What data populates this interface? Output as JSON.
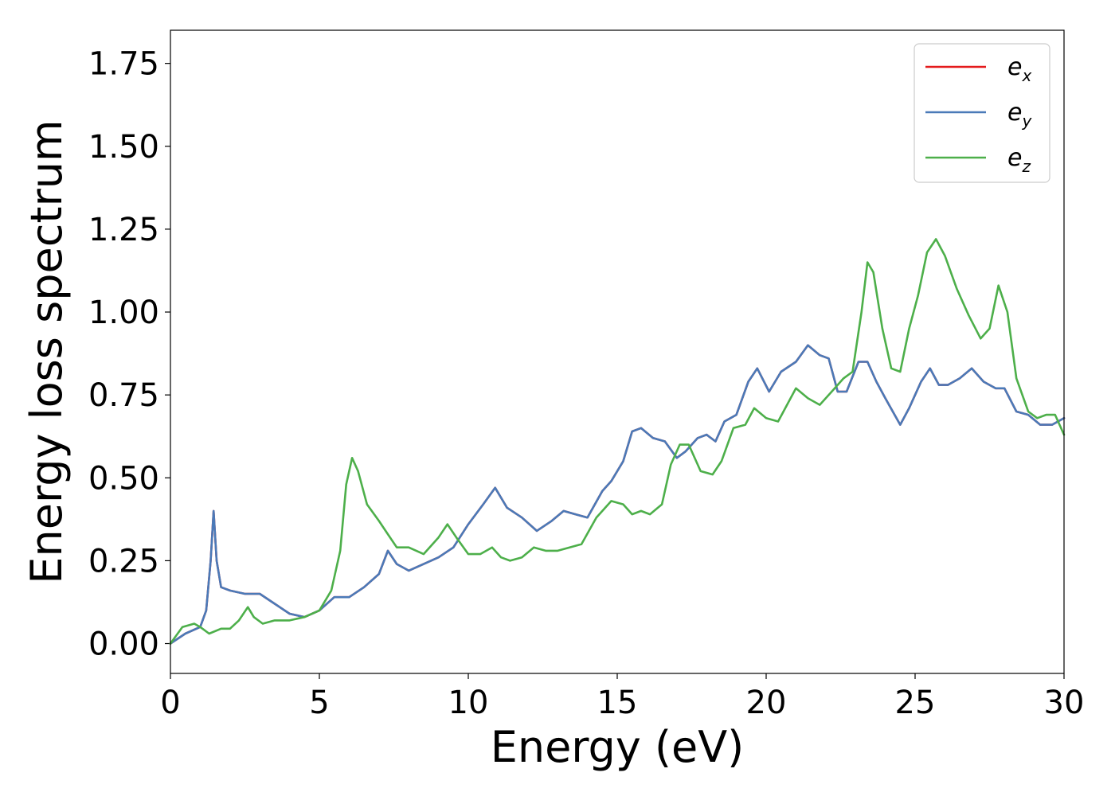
{
  "chart_data": {
    "type": "line",
    "xlabel": "Energy (eV)",
    "ylabel": "Energy loss spectrum",
    "xlim": [
      0,
      30
    ],
    "ylim": [
      -0.09,
      1.85
    ],
    "grid": false,
    "legend_position": "top-right",
    "xticks": [
      0,
      5,
      10,
      15,
      20,
      25,
      30
    ],
    "xtick_labels": [
      "0",
      "5",
      "10",
      "15",
      "20",
      "25",
      "30"
    ],
    "yticks": [
      0.0,
      0.25,
      0.5,
      0.75,
      1.0,
      1.25,
      1.5,
      1.75
    ],
    "ytick_labels": [
      "0.00",
      "0.25",
      "0.50",
      "0.75",
      "1.00",
      "1.25",
      "1.50",
      "1.75"
    ],
    "series": [
      {
        "name": "e",
        "subscript": "x",
        "color": "#e41a1c",
        "x": [
          0,
          0.5,
          1.0,
          1.2,
          1.35,
          1.45,
          1.55,
          1.7,
          2.0,
          2.5,
          3.0,
          3.5,
          4.0,
          4.5,
          5.0,
          5.5,
          6.0,
          6.5,
          7.0,
          7.3,
          7.6,
          8.0,
          8.5,
          9.0,
          9.5,
          10.0,
          10.5,
          10.9,
          11.3,
          11.8,
          12.3,
          12.8,
          13.2,
          13.6,
          14.0,
          14.5,
          14.8,
          15.2,
          15.5,
          15.8,
          16.2,
          16.6,
          17.0,
          17.3,
          17.7,
          18.0,
          18.3,
          18.6,
          19.0,
          19.4,
          19.7,
          20.1,
          20.5,
          21.0,
          21.4,
          21.8,
          22.1,
          22.4,
          22.7,
          23.1,
          23.4,
          23.7,
          24.0,
          24.5,
          24.8,
          25.2,
          25.5,
          25.8,
          26.1,
          26.5,
          26.9,
          27.3,
          27.7,
          28.0,
          28.4,
          28.8,
          29.2,
          29.6,
          30.0
        ],
        "y": [
          0.0,
          0.03,
          0.05,
          0.1,
          0.25,
          0.4,
          0.25,
          0.17,
          0.16,
          0.15,
          0.15,
          0.12,
          0.09,
          0.08,
          0.1,
          0.14,
          0.14,
          0.17,
          0.21,
          0.28,
          0.24,
          0.22,
          0.24,
          0.26,
          0.29,
          0.36,
          0.42,
          0.47,
          0.41,
          0.38,
          0.34,
          0.37,
          0.4,
          0.39,
          0.38,
          0.46,
          0.49,
          0.55,
          0.64,
          0.65,
          0.62,
          0.61,
          0.56,
          0.58,
          0.62,
          0.63,
          0.61,
          0.67,
          0.69,
          0.79,
          0.83,
          0.76,
          0.82,
          0.85,
          0.9,
          0.87,
          0.86,
          0.76,
          0.76,
          0.85,
          0.85,
          0.79,
          0.74,
          0.66,
          0.71,
          0.79,
          0.83,
          0.78,
          0.78,
          0.8,
          0.83,
          0.79,
          0.77,
          0.77,
          0.7,
          0.69,
          0.66,
          0.66,
          0.68
        ]
      },
      {
        "name": "e",
        "subscript": "y",
        "color": "#4a7ab8",
        "x": [
          0,
          0.5,
          1.0,
          1.2,
          1.35,
          1.45,
          1.55,
          1.7,
          2.0,
          2.5,
          3.0,
          3.5,
          4.0,
          4.5,
          5.0,
          5.5,
          6.0,
          6.5,
          7.0,
          7.3,
          7.6,
          8.0,
          8.5,
          9.0,
          9.5,
          10.0,
          10.5,
          10.9,
          11.3,
          11.8,
          12.3,
          12.8,
          13.2,
          13.6,
          14.0,
          14.5,
          14.8,
          15.2,
          15.5,
          15.8,
          16.2,
          16.6,
          17.0,
          17.3,
          17.7,
          18.0,
          18.3,
          18.6,
          19.0,
          19.4,
          19.7,
          20.1,
          20.5,
          21.0,
          21.4,
          21.8,
          22.1,
          22.4,
          22.7,
          23.1,
          23.4,
          23.7,
          24.0,
          24.5,
          24.8,
          25.2,
          25.5,
          25.8,
          26.1,
          26.5,
          26.9,
          27.3,
          27.7,
          28.0,
          28.4,
          28.8,
          29.2,
          29.6,
          30.0
        ],
        "y": [
          0.0,
          0.03,
          0.05,
          0.1,
          0.25,
          0.4,
          0.25,
          0.17,
          0.16,
          0.15,
          0.15,
          0.12,
          0.09,
          0.08,
          0.1,
          0.14,
          0.14,
          0.17,
          0.21,
          0.28,
          0.24,
          0.22,
          0.24,
          0.26,
          0.29,
          0.36,
          0.42,
          0.47,
          0.41,
          0.38,
          0.34,
          0.37,
          0.4,
          0.39,
          0.38,
          0.46,
          0.49,
          0.55,
          0.64,
          0.65,
          0.62,
          0.61,
          0.56,
          0.58,
          0.62,
          0.63,
          0.61,
          0.67,
          0.69,
          0.79,
          0.83,
          0.76,
          0.82,
          0.85,
          0.9,
          0.87,
          0.86,
          0.76,
          0.76,
          0.85,
          0.85,
          0.79,
          0.74,
          0.66,
          0.71,
          0.79,
          0.83,
          0.78,
          0.78,
          0.8,
          0.83,
          0.79,
          0.77,
          0.77,
          0.7,
          0.69,
          0.66,
          0.66,
          0.68
        ]
      },
      {
        "name": "e",
        "subscript": "z",
        "color": "#4daf4a",
        "x": [
          0,
          0.4,
          0.8,
          1.0,
          1.3,
          1.7,
          2.0,
          2.3,
          2.6,
          2.8,
          3.1,
          3.5,
          4.0,
          4.5,
          5.0,
          5.4,
          5.7,
          5.9,
          6.1,
          6.3,
          6.6,
          7.0,
          7.3,
          7.6,
          8.0,
          8.5,
          9.0,
          9.3,
          9.6,
          10.0,
          10.4,
          10.8,
          11.1,
          11.4,
          11.8,
          12.2,
          12.6,
          13.0,
          13.4,
          13.8,
          14.3,
          14.8,
          15.2,
          15.5,
          15.8,
          16.1,
          16.5,
          16.8,
          17.1,
          17.4,
          17.8,
          18.2,
          18.5,
          18.9,
          19.3,
          19.6,
          20.0,
          20.4,
          20.7,
          21.0,
          21.4,
          21.8,
          22.2,
          22.6,
          22.9,
          23.2,
          23.4,
          23.6,
          23.9,
          24.2,
          24.5,
          24.8,
          25.1,
          25.4,
          25.7,
          26.0,
          26.4,
          26.8,
          27.2,
          27.5,
          27.8,
          28.1,
          28.4,
          28.8,
          29.1,
          29.4,
          29.7,
          30.0
        ],
        "y": [
          0.0,
          0.05,
          0.06,
          0.05,
          0.03,
          0.045,
          0.045,
          0.07,
          0.11,
          0.08,
          0.06,
          0.07,
          0.07,
          0.08,
          0.1,
          0.16,
          0.28,
          0.48,
          0.56,
          0.52,
          0.42,
          0.37,
          0.33,
          0.29,
          0.29,
          0.27,
          0.32,
          0.36,
          0.32,
          0.27,
          0.27,
          0.29,
          0.26,
          0.25,
          0.26,
          0.29,
          0.28,
          0.28,
          0.29,
          0.3,
          0.38,
          0.43,
          0.42,
          0.39,
          0.4,
          0.39,
          0.42,
          0.54,
          0.6,
          0.6,
          0.52,
          0.51,
          0.55,
          0.65,
          0.66,
          0.71,
          0.68,
          0.67,
          0.72,
          0.77,
          0.74,
          0.72,
          0.76,
          0.8,
          0.82,
          1.0,
          1.15,
          1.12,
          0.95,
          0.83,
          0.82,
          0.95,
          1.05,
          1.18,
          1.22,
          1.17,
          1.07,
          0.99,
          0.92,
          0.95,
          1.08,
          1.0,
          0.8,
          0.7,
          0.68,
          0.69,
          0.69,
          0.63
        ]
      }
    ]
  }
}
